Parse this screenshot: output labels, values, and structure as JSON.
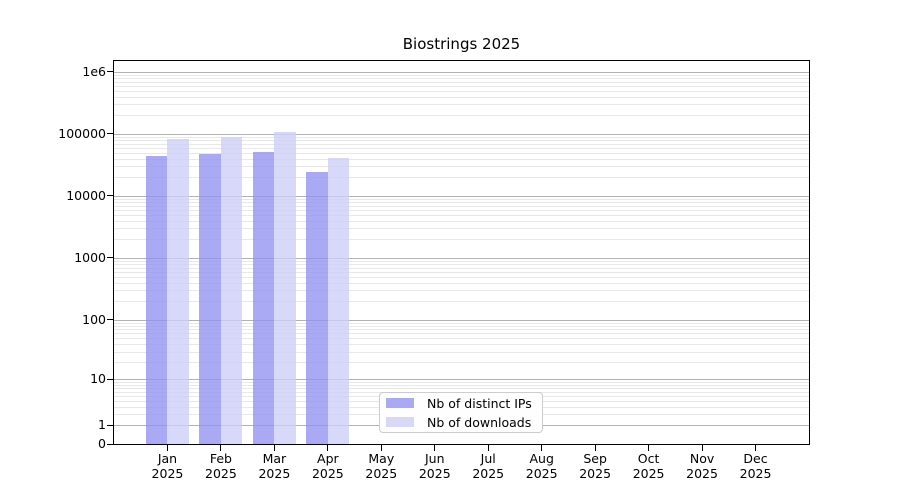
{
  "title": "Biostrings 2025",
  "chart_data": {
    "type": "bar",
    "title": "Biostrings 2025",
    "xlabel": "",
    "ylabel": "",
    "yscale": "log10(value+1), ticks at 0,1,10,100,...,1e6",
    "ylim": [
      0,
      1600000
    ],
    "grid": "horizontal major and minor gridlines on",
    "legend_position": "inside plot, bottom center-left",
    "categories": [
      "Jan 2025",
      "Feb 2025",
      "Mar 2025",
      "Apr 2025",
      "May 2025",
      "Jun 2025",
      "Jul 2025",
      "Aug 2025",
      "Sep 2025",
      "Oct 2025",
      "Nov 2025",
      "Dec 2025"
    ],
    "y_ticks": [
      {
        "label": "1e6",
        "value": 1000000
      },
      {
        "label": "100000",
        "value": 100000
      },
      {
        "label": "10000",
        "value": 10000
      },
      {
        "label": "1000",
        "value": 1000
      },
      {
        "label": "100",
        "value": 100
      },
      {
        "label": "10",
        "value": 10
      },
      {
        "label": "1",
        "value": 1
      },
      {
        "label": "0",
        "value": 0
      }
    ],
    "series": [
      {
        "name": "Nb of distinct IPs",
        "color": "#aaaaf4",
        "fill": "rgba(146,146,241,0.78)",
        "values": [
          45000,
          48000,
          52000,
          24000,
          0,
          0,
          0,
          0,
          0,
          0,
          0,
          0
        ]
      },
      {
        "name": "Nb of downloads",
        "color": "#d8d8f8",
        "fill": "rgba(205,205,247,0.78)",
        "values": [
          83000,
          90000,
          107000,
          41000,
          0,
          0,
          0,
          0,
          0,
          0,
          0,
          0
        ]
      }
    ]
  },
  "colors": {
    "background": "#ffffff",
    "grid_major": "#b2b2b2",
    "grid_minor": "#e8e8e8",
    "spine": "#000000",
    "text": "#000000",
    "legend_border": "#cccccc"
  }
}
